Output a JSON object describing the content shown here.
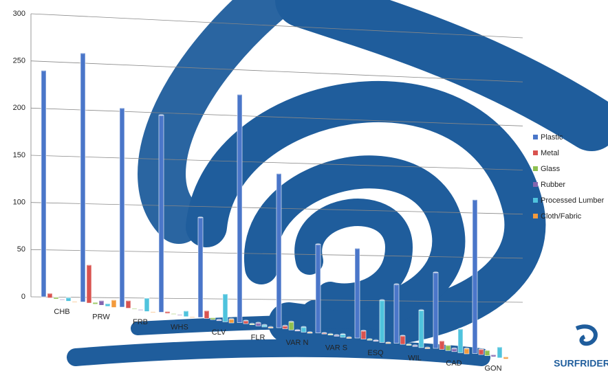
{
  "chart_data": {
    "type": "bar3d",
    "categories": [
      "CHB",
      "PRW",
      "FRB",
      "WHS",
      "CLV",
      "FLR",
      "VAR N",
      "VAR S",
      "ESQ",
      "WIL",
      "CAD",
      "GON"
    ],
    "series": [
      {
        "name": "Plastic",
        "color": "#4a76c9",
        "values": [
          240,
          260,
          205,
          200,
          100,
          225,
          150,
          85,
          85,
          55,
          70,
          140
        ]
      },
      {
        "name": "Metal",
        "color": "#d9534f",
        "values": [
          5,
          40,
          8,
          2,
          8,
          3,
          3,
          1,
          8,
          8,
          8,
          5
        ]
      },
      {
        "name": "Glass",
        "color": "#8fc04f",
        "values": [
          2,
          2,
          1,
          1,
          2,
          1,
          8,
          1,
          1,
          1,
          5,
          5
        ]
      },
      {
        "name": "Rubber",
        "color": "#8466b0",
        "values": [
          1,
          5,
          1,
          1,
          1,
          3,
          1,
          1,
          1,
          1,
          3,
          2
        ]
      },
      {
        "name": "Processed Lumber",
        "color": "#4fc3dd",
        "values": [
          4,
          3,
          14,
          6,
          28,
          2,
          5,
          3,
          40,
          35,
          22,
          10
        ]
      },
      {
        "name": "Cloth/Fabric",
        "color": "#f39a3c",
        "values": [
          1,
          8,
          1,
          1,
          4,
          1,
          1,
          1,
          1,
          1,
          5,
          2
        ]
      }
    ],
    "ylim": [
      0,
      300
    ],
    "yticks": [
      0,
      50,
      100,
      150,
      200,
      250,
      300
    ],
    "grid": true,
    "legend": "right",
    "logo_text": "SURFRIDER"
  }
}
